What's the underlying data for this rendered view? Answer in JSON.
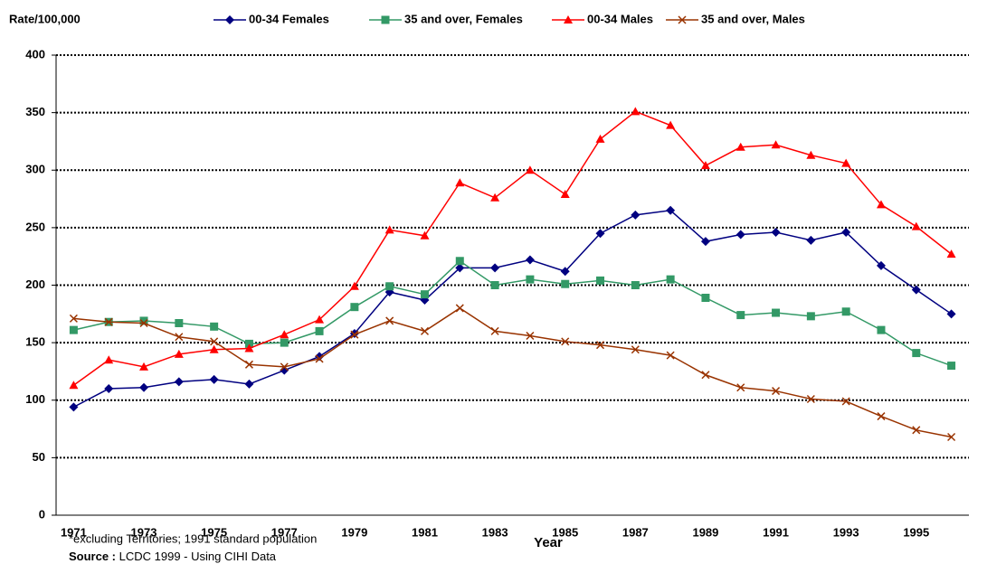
{
  "chart_data": {
    "type": "line",
    "y_axis_label": "Rate/100,000",
    "x_axis_label": "Year",
    "footnote": "*excluding Territories; 1991 standard population",
    "source_label": "Source :",
    "source_text": "LCDC 1999 - Using CIHI  Data",
    "categories": [
      "1971",
      null,
      "1973",
      null,
      "1975",
      null,
      "1977",
      null,
      "1979",
      null,
      "1981",
      null,
      "1983",
      null,
      "1985",
      null,
      "1987",
      null,
      "1989",
      null,
      "1991",
      null,
      "1993",
      null,
      "1995",
      null
    ],
    "series": [
      {
        "name": "00-34 Females",
        "color": "#000080",
        "marker": "diamond",
        "values": [
          94,
          110,
          111,
          116,
          118,
          114,
          126,
          138,
          158,
          194,
          187,
          215,
          215,
          222,
          212,
          245,
          261,
          265,
          238,
          244,
          246,
          239,
          246,
          217,
          196,
          175
        ]
      },
      {
        "name": "35 and over, Females",
        "color": "#339966",
        "marker": "square",
        "values": [
          161,
          168,
          169,
          167,
          164,
          149,
          150,
          160,
          181,
          199,
          192,
          221,
          200,
          205,
          201,
          204,
          200,
          205,
          189,
          174,
          176,
          173,
          177,
          161,
          141,
          130
        ]
      },
      {
        "name": "00-34 Males",
        "color": "#ff0000",
        "marker": "triangle",
        "values": [
          113,
          135,
          129,
          140,
          144,
          145,
          157,
          170,
          199,
          248,
          243,
          289,
          276,
          300,
          279,
          327,
          351,
          339,
          304,
          320,
          322,
          313,
          306,
          270,
          251,
          227
        ]
      },
      {
        "name": "35 and over, Males",
        "color": "#993300",
        "marker": "x",
        "values": [
          171,
          168,
          167,
          155,
          151,
          131,
          129,
          136,
          157,
          169,
          160,
          180,
          160,
          156,
          151,
          148,
          144,
          139,
          122,
          111,
          108,
          101,
          99,
          86,
          74,
          68
        ]
      }
    ],
    "ylim": [
      0,
      400
    ],
    "yticks": [
      0,
      50,
      100,
      150,
      200,
      250,
      300,
      350,
      400
    ],
    "grid": true
  }
}
